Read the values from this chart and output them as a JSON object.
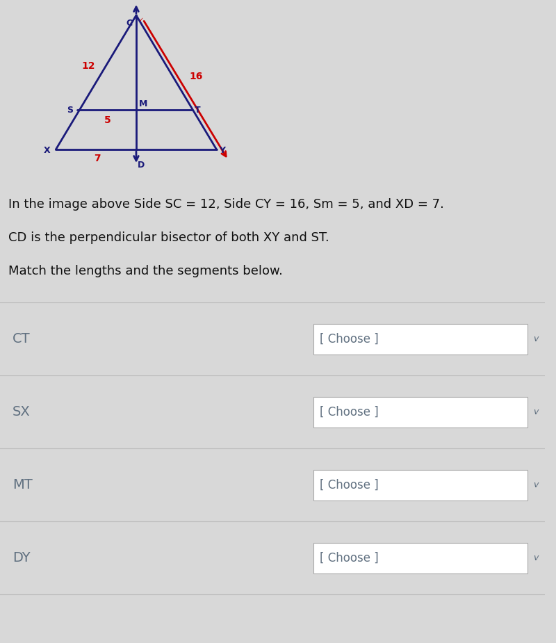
{
  "bg_color": "#d8d8d8",
  "fig_bg_color": "#d4d4d4",
  "panel_bg_color": "#d0d0d0",
  "triangle_color": "#1a1a7a",
  "red_line_color": "#cc0000",
  "text_color_dark": "#111111",
  "text_color_blue": "#607080",
  "label_color_red": "#cc0000",
  "line1": "In the image above Side SC = 12, Side CY = 16, Sm = 5, and XD = 7.",
  "line2": "CD is the perpendicular bisector of both XY and ST.",
  "line3": "Match the lengths and the segments below.",
  "rows": [
    "CT",
    "SX",
    "MT",
    "DY"
  ],
  "dropdown_text": "[ Choose ]",
  "fig_label_fontsize": 9,
  "fig_number_fontsize": 10,
  "body_fontsize": 13,
  "row_fontsize": 14,
  "dropdown_fontsize": 12,
  "separator_color": "#bbbbbb",
  "dropdown_border_color": "#aaaaaa",
  "dropdown_bg": "#ffffff",
  "chevron_color": "#607080"
}
